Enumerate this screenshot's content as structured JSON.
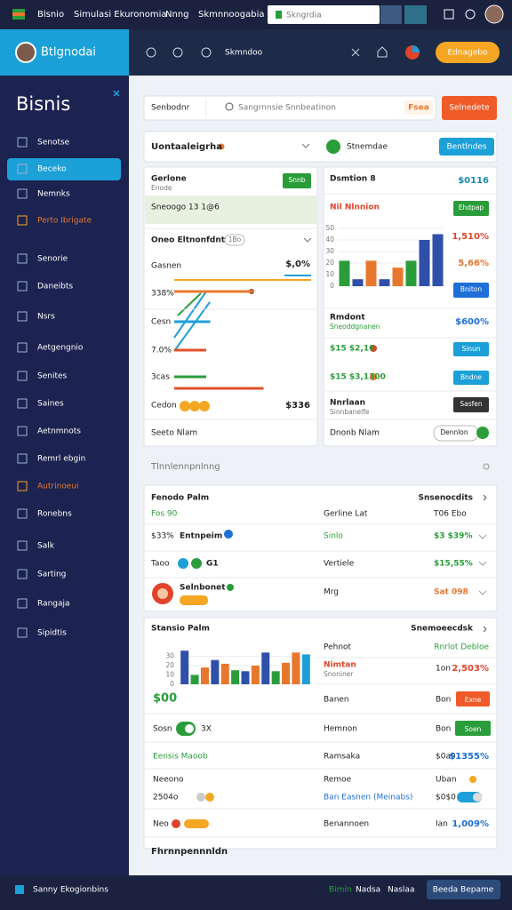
{
  "topbar": {
    "brand": "Blsnio",
    "nav": [
      "Simulasi Ekuronomia",
      "Nnng",
      "Skmnnoogabia"
    ],
    "search": "Skngrdia"
  },
  "header": {
    "title": "Btlgnodai",
    "link": "Skmndoo",
    "button": "Ednagebo"
  },
  "sidebar": {
    "title": "Bisnis",
    "items": [
      "Senotse",
      "Beceko",
      "Nemnks",
      "Perto Ibrigate",
      "Senorie",
      "Daneibts",
      "Nsrs",
      "Aetgengnio",
      "Senites",
      "Saines",
      "Aetnmnots",
      "Remrl ebgin",
      "Autrinoeui",
      "Ronebns",
      "Salk",
      "Sarting",
      "Rangaja",
      "Sipidtis"
    ]
  },
  "search": {
    "placeholder": "Senbodnr",
    "query": "Sangrnnsie Snnbeatinon",
    "tag": "Fsea",
    "button": "Selnedete"
  },
  "summary": {
    "title": "Uontaaleigrha",
    "label": "Stnemdae",
    "button": "Bentlndes"
  },
  "left_card": {
    "title": "Gerlone",
    "subtitle": "Enode",
    "button": "Snnb",
    "highlight": "Sneoogo 13 1@6",
    "section": "Oneo Eltnonfdnt",
    "chip": "1Bo",
    "metric_label": "Gasnen",
    "metric_value": "$,0%",
    "rows": [
      "338%",
      "Cesn",
      "7.0%",
      "3cas",
      "Cedon"
    ],
    "total": "$336",
    "footer": "Seeto Nlam",
    "bars": {
      "type": "bar",
      "orientation": "horizontal",
      "xlim": [
        0,
        100
      ],
      "values": [
        60,
        27,
        24,
        24,
        67
      ],
      "colors": [
        "#e8772e",
        "#1e9fd8",
        "#e0522a",
        "#2a9d3a",
        "#e0522a"
      ]
    }
  },
  "right_card": {
    "title": "Dsmtion 8",
    "value": "$0116",
    "label": "Nil Nlnnion",
    "button": "Ehdpap",
    "stat1": "1,510%",
    "stat2": "5,66%",
    "button2": "Bniton",
    "rows": [
      {
        "title": "Rmdont",
        "sub": "Sneoddgnanen",
        "value": "$600%"
      },
      {
        "title": "$15 $2,10",
        "button": "Sinun"
      },
      {
        "title": "$15 $3,1300",
        "button": "Bndne"
      },
      {
        "title": "Nnrlaan",
        "sub": "Sinnbanelfe",
        "button": "Sasfen"
      }
    ],
    "footer": "Dnonb Nlam",
    "footer_button": "Dennlon",
    "chart": {
      "type": "bar",
      "ylim": [
        0,
        50
      ],
      "yticks": [
        0,
        10,
        20,
        30,
        40,
        50
      ],
      "values": [
        22,
        6,
        22,
        6,
        16,
        22,
        40,
        45
      ],
      "colors": [
        "#2a9d3a",
        "#2f4fa8",
        "#e8772e",
        "#2f4fa8",
        "#e8772e",
        "#2a9d3a",
        "#2f4fa8",
        "#2f4fa8"
      ]
    }
  },
  "section_title": "Tlnnlennpnlnng",
  "table1": {
    "title": "Fenodo Palm",
    "action": "Snsenocdits",
    "rows": [
      {
        "a": "Fos 90",
        "c": "Gerline Lat",
        "d": "T06 Ebo"
      },
      {
        "a": "$33%",
        "b": "Entnpeim",
        "c": "Sinlo",
        "d": "$3 $39%"
      },
      {
        "a": "Taoo",
        "b": "G1",
        "c": "Vertiele",
        "d": "$15,55%"
      },
      {
        "b": "Selnbonet",
        "c": "Mrg",
        "d": "Sat 098"
      }
    ]
  },
  "table2": {
    "title": "Stansio Palm",
    "action": "Snemoeecdsk",
    "chart_value": "$00",
    "col1": "Pehnot",
    "col2": "Rnrlot Debloe",
    "chart": {
      "type": "bar",
      "ylim": [
        0,
        40
      ],
      "yticks": [
        0,
        10,
        20,
        30
      ],
      "values": [
        36,
        10,
        18,
        26,
        22,
        15,
        14,
        20,
        34,
        14,
        23,
        34,
        32
      ],
      "colors": [
        "#2f4fa8",
        "#2a9d3a",
        "#e8772e",
        "#2f4fa8",
        "#e8772e",
        "#2a9d3a",
        "#2f4fa8",
        "#e8772e",
        "#2f4fa8",
        "#2a9d3a",
        "#e8772e",
        "#e8772e",
        "#1e9fd8"
      ]
    },
    "rows": [
      {
        "c": "Nimtan",
        "sub": "Snoniner",
        "d": "1on",
        "e": "2,503%"
      },
      {
        "c": "Banen",
        "d": "Bon",
        "button": "Exne"
      },
      {
        "a": "Sosn",
        "b": "3X",
        "c": "Hemnon",
        "d": "Bon",
        "button": "Soen"
      },
      {
        "a": "Eensis Maoob",
        "c": "Ramsaka",
        "d": "$0a0",
        "e": "$1355%"
      },
      {
        "a": "Neeono",
        "c": "Remoe",
        "d": "Uban"
      },
      {
        "a": "2504o",
        "c": "Ban Easnen (Meinabs)",
        "d": "$0$0"
      },
      {
        "a": "Neo",
        "c": "Benannoen",
        "d": "Ian",
        "e": "1,009%"
      }
    ],
    "footer": "Fhrnnpennnldn"
  },
  "footer": {
    "text": "Sanny Ekogionbins",
    "links": [
      "Bimin",
      "Nadsa",
      "Naslaa"
    ],
    "button": "Beeda Bepame"
  }
}
